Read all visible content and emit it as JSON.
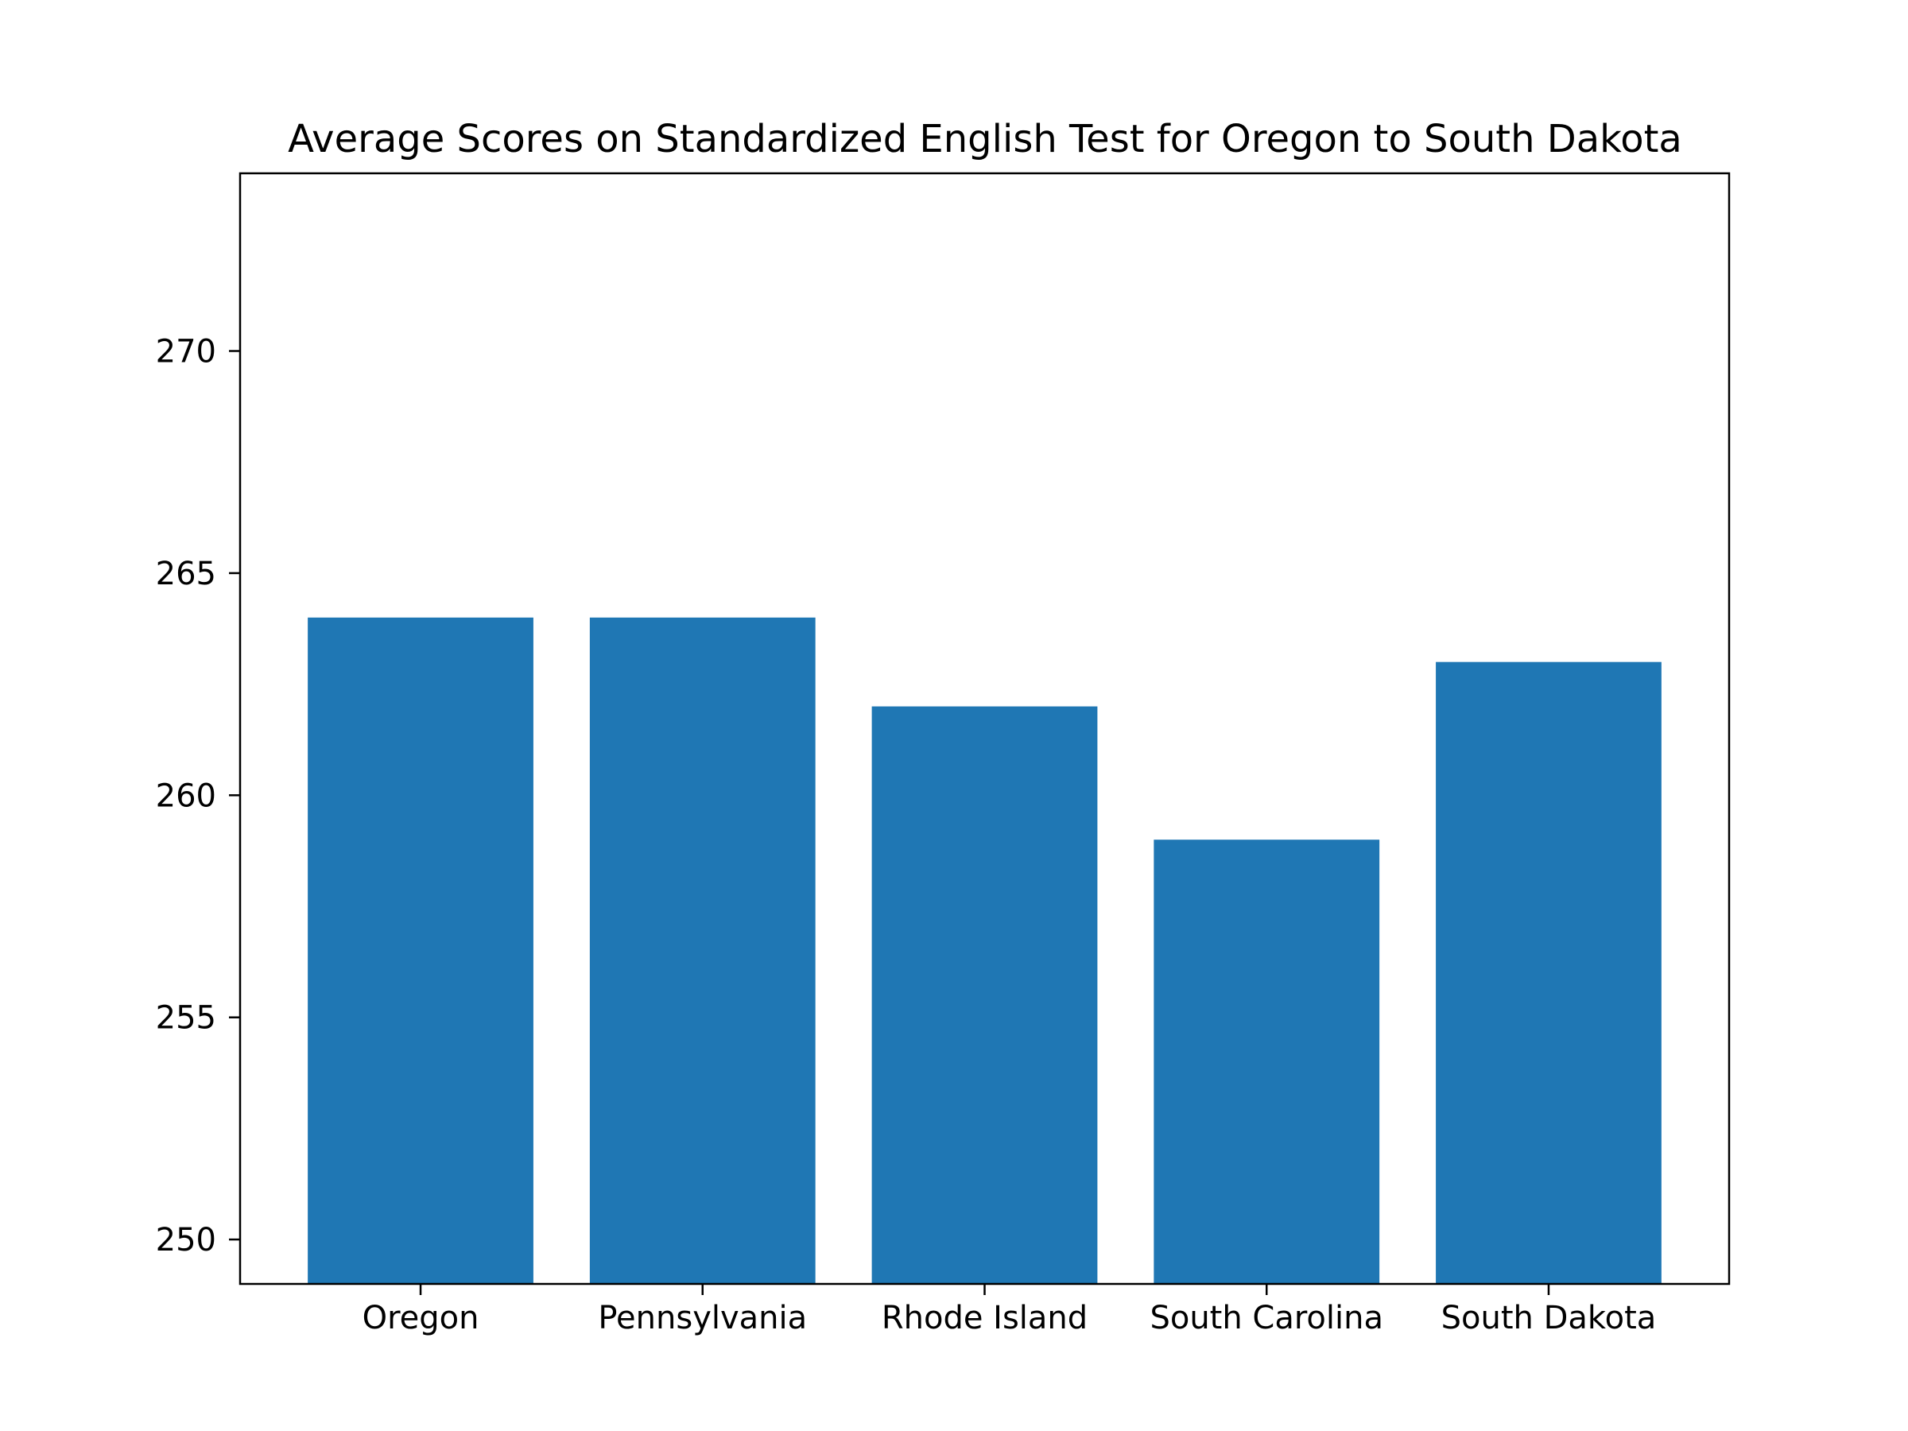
{
  "chart_data": {
    "type": "bar",
    "title": "Average Scores on Standardized English Test for Oregon to South Dakota",
    "xlabel": "",
    "ylabel": "",
    "categories": [
      "Oregon",
      "Pennsylvania",
      "Rhode Island",
      "South Carolina",
      "South Dakota"
    ],
    "values": [
      264,
      264,
      262,
      259,
      263
    ],
    "ylim": [
      249,
      274
    ],
    "yticks": [
      250,
      255,
      260,
      265,
      270
    ],
    "grid": false,
    "legend": "none",
    "bar_color": "#1f77b4"
  }
}
